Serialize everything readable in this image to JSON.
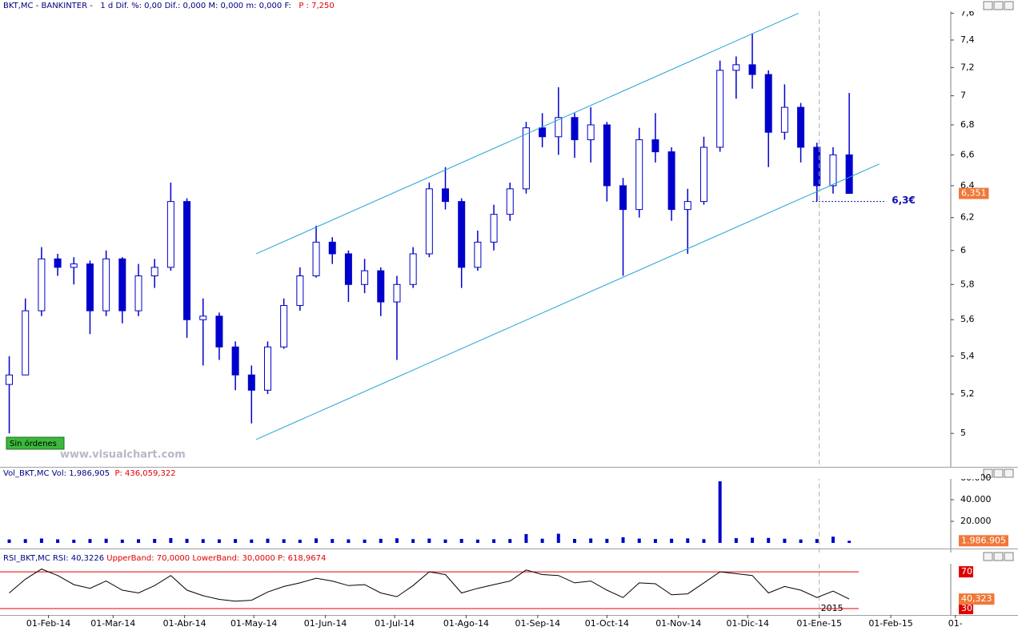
{
  "chart_data": [
    {
      "type": "candlestick",
      "header": [
        {
          "text": "BKT,MC - BANKINTER -   1 d Dif. %: 0,00 Dif.: 0,000 M: 0,000 m: 0,000 F:",
          "color": "#000080"
        },
        {
          "text": "   P : 7,250",
          "color": "#e00000"
        }
      ],
      "color": "#0000cc",
      "log": true,
      "xlim": [
        "2014-01-11",
        "2015-02-27"
      ],
      "ylim": [
        4.84,
        7.64
      ],
      "yticks": [
        5,
        {
          "value": 5.2,
          "label": "5,2"
        },
        {
          "value": 5.4,
          "label": "5,4"
        },
        {
          "value": 5.6,
          "label": "5,6"
        },
        {
          "value": 5.8,
          "label": "5,8"
        },
        6,
        {
          "value": 6.2,
          "label": "6,2"
        },
        {
          "value": 6.4,
          "label": "6,4"
        },
        {
          "value": 6.6,
          "label": "6,6"
        },
        {
          "value": 6.8,
          "label": "6,8"
        },
        7,
        {
          "value": 7.2,
          "label": "7,2"
        },
        {
          "value": 7.4,
          "label": "7,4"
        },
        {
          "value": 7.6,
          "label": "7,6"
        }
      ],
      "x": [
        "2014-01-13",
        "2014-01-20",
        "2014-01-27",
        "2014-02-03",
        "2014-02-10",
        "2014-02-17",
        "2014-02-24",
        "2014-03-03",
        "2014-03-10",
        "2014-03-17",
        "2014-03-24",
        "2014-03-31",
        "2014-04-07",
        "2014-04-14",
        "2014-04-21",
        "2014-04-28",
        "2014-05-05",
        "2014-05-12",
        "2014-05-19",
        "2014-05-26",
        "2014-06-02",
        "2014-06-09",
        "2014-06-16",
        "2014-06-23",
        "2014-06-30",
        "2014-07-07",
        "2014-07-14",
        "2014-07-21",
        "2014-07-28",
        "2014-08-04",
        "2014-08-11",
        "2014-08-18",
        "2014-08-25",
        "2014-09-01",
        "2014-09-08",
        "2014-09-15",
        "2014-09-22",
        "2014-09-29",
        "2014-10-06",
        "2014-10-13",
        "2014-10-20",
        "2014-10-27",
        "2014-11-03",
        "2014-11-10",
        "2014-11-17",
        "2014-11-24",
        "2014-12-01",
        "2014-12-08",
        "2014-12-15",
        "2014-12-22",
        "2014-12-29",
        "2015-01-05",
        "2015-01-12"
      ],
      "open": [
        5.25,
        5.3,
        5.65,
        5.95,
        5.9,
        5.92,
        5.65,
        5.95,
        5.65,
        5.85,
        5.9,
        6.3,
        5.6,
        5.62,
        5.45,
        5.3,
        5.22,
        5.45,
        5.68,
        5.85,
        6.05,
        5.98,
        5.8,
        5.88,
        5.7,
        5.8,
        5.98,
        6.38,
        6.3,
        5.9,
        6.05,
        6.22,
        6.38,
        6.78,
        6.72,
        6.85,
        6.7,
        6.8,
        6.4,
        6.25,
        6.7,
        6.62,
        6.25,
        6.3,
        6.65,
        7.18,
        7.22,
        7.15,
        6.75,
        6.92,
        6.65,
        6.4,
        6.6
      ],
      "high": [
        5.4,
        5.72,
        6.02,
        5.98,
        5.96,
        5.94,
        6.0,
        5.96,
        5.92,
        5.95,
        6.42,
        6.32,
        5.72,
        5.64,
        5.48,
        5.35,
        5.48,
        5.72,
        5.9,
        6.15,
        6.08,
        6.0,
        5.95,
        5.9,
        5.85,
        6.02,
        6.42,
        6.52,
        6.32,
        6.12,
        6.28,
        6.42,
        6.82,
        6.88,
        7.06,
        6.88,
        6.92,
        6.82,
        6.45,
        6.78,
        6.88,
        6.65,
        6.38,
        6.72,
        7.25,
        7.28,
        7.45,
        7.18,
        7.08,
        6.95,
        6.68,
        6.65,
        7.02
      ],
      "low": [
        5.0,
        5.3,
        5.62,
        5.85,
        5.8,
        5.52,
        5.62,
        5.58,
        5.62,
        5.78,
        5.88,
        5.5,
        5.35,
        5.38,
        5.22,
        5.05,
        5.2,
        5.44,
        5.65,
        5.84,
        5.92,
        5.7,
        5.75,
        5.62,
        5.38,
        5.78,
        5.96,
        6.25,
        5.78,
        5.88,
        6.0,
        6.18,
        6.35,
        6.65,
        6.6,
        6.58,
        6.55,
        6.3,
        5.85,
        6.2,
        6.55,
        6.18,
        5.98,
        6.28,
        6.62,
        6.98,
        7.05,
        6.52,
        6.7,
        6.55,
        6.3,
        6.35,
        6.35
      ],
      "close": [
        5.3,
        5.65,
        5.95,
        5.9,
        5.92,
        5.65,
        5.95,
        5.65,
        5.85,
        5.9,
        6.3,
        5.6,
        5.62,
        5.45,
        5.3,
        5.22,
        5.45,
        5.68,
        5.85,
        6.05,
        5.98,
        5.8,
        5.88,
        5.7,
        5.8,
        5.98,
        6.38,
        6.3,
        5.9,
        6.05,
        6.22,
        6.38,
        6.78,
        6.72,
        6.85,
        6.7,
        6.8,
        6.4,
        6.25,
        6.7,
        6.62,
        6.25,
        6.3,
        6.65,
        7.18,
        7.22,
        7.15,
        6.75,
        6.92,
        6.65,
        6.4,
        6.6,
        6.351
      ],
      "last_label": "6,351",
      "trendlines": [
        {
          "x": [
            "2014-05-02",
            "2014-12-23"
          ],
          "y": [
            5.98,
            7.6
          ],
          "color": "#1fa3d6"
        },
        {
          "x": [
            "2014-05-02",
            "2015-01-27"
          ],
          "y": [
            4.97,
            6.54
          ],
          "color": "#1fa3d6"
        }
      ],
      "level": {
        "value": 6.3,
        "label": "6,3€",
        "x": [
          "2014-12-29",
          "2015-01-30"
        ],
        "color": "#1010b0"
      },
      "year_marker": {
        "value": "2015-01-01",
        "label": "2015"
      },
      "button": "Sin órdenes",
      "watermark": "www.visualchart.com"
    },
    {
      "type": "bar",
      "header": [
        {
          "text": "Vol_BKT,MC Vol: 1,986,905",
          "color": "#000080"
        },
        {
          "text": "  P: 436,059,322",
          "color": "#e00000"
        }
      ],
      "color": "#0000cc",
      "xlim": [
        "2014-01-11",
        "2015-02-27"
      ],
      "ylim": [
        0,
        60000000
      ],
      "yticks": [
        {
          "value": 20000000,
          "label": "20.000"
        },
        {
          "value": 40000000,
          "label": "40.000"
        },
        {
          "value": 60000000,
          "label": "60.000"
        }
      ],
      "x": [
        "2014-01-13",
        "2014-01-20",
        "2014-01-27",
        "2014-02-03",
        "2014-02-10",
        "2014-02-17",
        "2014-02-24",
        "2014-03-03",
        "2014-03-10",
        "2014-03-17",
        "2014-03-24",
        "2014-03-31",
        "2014-04-07",
        "2014-04-14",
        "2014-04-21",
        "2014-04-28",
        "2014-05-05",
        "2014-05-12",
        "2014-05-19",
        "2014-05-26",
        "2014-06-02",
        "2014-06-09",
        "2014-06-16",
        "2014-06-23",
        "2014-06-30",
        "2014-07-07",
        "2014-07-14",
        "2014-07-21",
        "2014-07-28",
        "2014-08-04",
        "2014-08-11",
        "2014-08-18",
        "2014-08-25",
        "2014-09-01",
        "2014-09-08",
        "2014-09-15",
        "2014-09-22",
        "2014-09-29",
        "2014-10-06",
        "2014-10-13",
        "2014-10-20",
        "2014-10-27",
        "2014-11-03",
        "2014-11-10",
        "2014-11-17",
        "2014-11-24",
        "2014-12-01",
        "2014-12-08",
        "2014-12-15",
        "2014-12-22",
        "2014-12-29",
        "2015-01-05",
        "2015-01-12"
      ],
      "values": [
        3200000,
        3500000,
        4100000,
        3300000,
        3000000,
        3600000,
        3900000,
        3100000,
        3400000,
        3700000,
        4500000,
        3800000,
        3500000,
        3300000,
        3600000,
        3200000,
        3900000,
        3400000,
        3000000,
        4200000,
        3600000,
        3300000,
        3100000,
        3800000,
        4300000,
        3500000,
        4000000,
        3200000,
        3700000,
        3100000,
        3400000,
        3600000,
        8200000,
        3900000,
        8500000,
        3700000,
        4100000,
        3800000,
        5200000,
        4000000,
        3600000,
        3900000,
        4200000,
        3500000,
        57000000,
        4400000,
        4800000,
        4600000,
        3900000,
        3200000,
        3600000,
        5800000,
        1986905
      ],
      "last_label": "1.986.905"
    },
    {
      "type": "line",
      "header": [
        {
          "text": "RSI_BKT,MC RSI: 40,3226 ",
          "color": "#000080"
        },
        {
          "text": "UpperBand: 70,0000 LowerBand: 30,0000 P: 618,9674",
          "color": "#e00000"
        }
      ],
      "color": "#000000",
      "xlim": [
        "2014-01-11",
        "2015-02-27"
      ],
      "ylim": [
        23,
        91
      ],
      "xticks": [
        {
          "value": "2014-02-01",
          "label": "01-Feb-14"
        },
        {
          "value": "2014-03-01",
          "label": "01-Mar-14"
        },
        {
          "value": "2014-04-01",
          "label": "01-Abr-14"
        },
        {
          "value": "2014-05-01",
          "label": "01-May-14"
        },
        {
          "value": "2014-06-01",
          "label": "01-Jun-14"
        },
        {
          "value": "2014-07-01",
          "label": "01-Jul-14"
        },
        {
          "value": "2014-08-01",
          "label": "01-Ago-14"
        },
        {
          "value": "2014-09-01",
          "label": "01-Sep-14"
        },
        {
          "value": "2014-10-01",
          "label": "01-Oct-14"
        },
        {
          "value": "2014-11-01",
          "label": "01-Nov-14"
        },
        {
          "value": "2014-12-01",
          "label": "01-Dic-14"
        },
        {
          "value": "2015-01-01",
          "label": "01-Ene-15"
        },
        {
          "value": "2015-02-01",
          "label": "01-Feb-15"
        },
        {
          "value": "2015-03-01",
          "label": "01-"
        }
      ],
      "bands": [
        {
          "value": 70,
          "label": "70"
        },
        {
          "value": 30,
          "label": "30"
        }
      ],
      "band_color": "#e00000",
      "x": [
        "2014-01-13",
        "2014-01-20",
        "2014-01-27",
        "2014-02-03",
        "2014-02-10",
        "2014-02-17",
        "2014-02-24",
        "2014-03-03",
        "2014-03-10",
        "2014-03-17",
        "2014-03-24",
        "2014-03-31",
        "2014-04-07",
        "2014-04-14",
        "2014-04-21",
        "2014-04-28",
        "2014-05-05",
        "2014-05-12",
        "2014-05-19",
        "2014-05-26",
        "2014-06-02",
        "2014-06-09",
        "2014-06-16",
        "2014-06-23",
        "2014-06-30",
        "2014-07-07",
        "2014-07-14",
        "2014-07-21",
        "2014-07-28",
        "2014-08-04",
        "2014-08-11",
        "2014-08-18",
        "2014-08-25",
        "2014-09-01",
        "2014-09-08",
        "2014-09-15",
        "2014-09-22",
        "2014-09-29",
        "2014-10-06",
        "2014-10-13",
        "2014-10-20",
        "2014-10-27",
        "2014-11-03",
        "2014-11-10",
        "2014-11-17",
        "2014-11-24",
        "2014-12-01",
        "2014-12-08",
        "2014-12-15",
        "2014-12-22",
        "2014-12-29",
        "2015-01-05",
        "2015-01-12"
      ],
      "values": [
        47,
        62,
        73,
        66,
        56,
        52,
        60,
        50,
        47,
        55,
        66,
        50,
        44,
        40,
        38,
        39,
        48,
        54,
        58,
        63,
        60,
        55,
        56,
        47,
        43,
        55,
        70,
        67,
        47,
        52,
        56,
        60,
        72,
        67,
        66,
        58,
        60,
        50,
        42,
        58,
        57,
        45,
        46,
        58,
        70,
        68,
        66,
        47,
        54,
        50,
        42,
        49,
        40.3226
      ],
      "last_label": "40,323"
    }
  ]
}
